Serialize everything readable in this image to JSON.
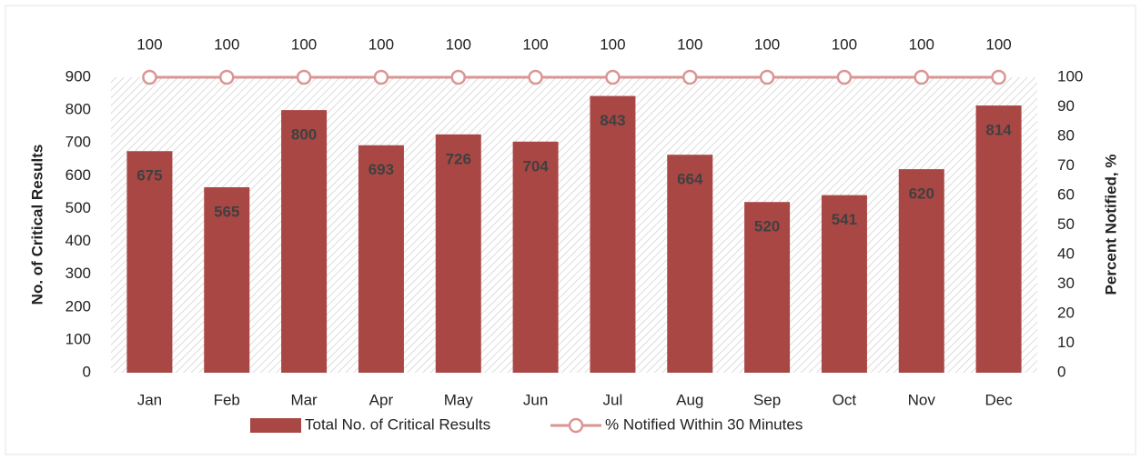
{
  "chart_data": {
    "type": "bar",
    "categories": [
      "Jan",
      "Feb",
      "Mar",
      "Apr",
      "May",
      "Jun",
      "Jul",
      "Aug",
      "Sep",
      "Oct",
      "Nov",
      "Dec"
    ],
    "series": [
      {
        "name": "Total No. of Critical Results",
        "color": "#a94744",
        "type": "bar",
        "values": [
          675,
          565,
          800,
          693,
          726,
          704,
          843,
          664,
          520,
          541,
          620,
          814
        ]
      },
      {
        "name": "% Notified Within 30 Minutes",
        "color": "#d99694",
        "type": "line",
        "axis": "y2",
        "values": [
          100,
          100,
          100,
          100,
          100,
          100,
          100,
          100,
          100,
          100,
          100,
          100
        ]
      }
    ],
    "ylabel": "No. of Critical Results",
    "y2label": "Percent Notified, %",
    "ylim": [
      0,
      900
    ],
    "yticks": [
      0,
      100,
      200,
      300,
      400,
      500,
      600,
      700,
      800,
      900
    ],
    "y2lim": [
      0,
      100
    ],
    "y2ticks": [
      0,
      10,
      20,
      30,
      40,
      50,
      60,
      70,
      80,
      90,
      100
    ],
    "legend": "bottom"
  }
}
